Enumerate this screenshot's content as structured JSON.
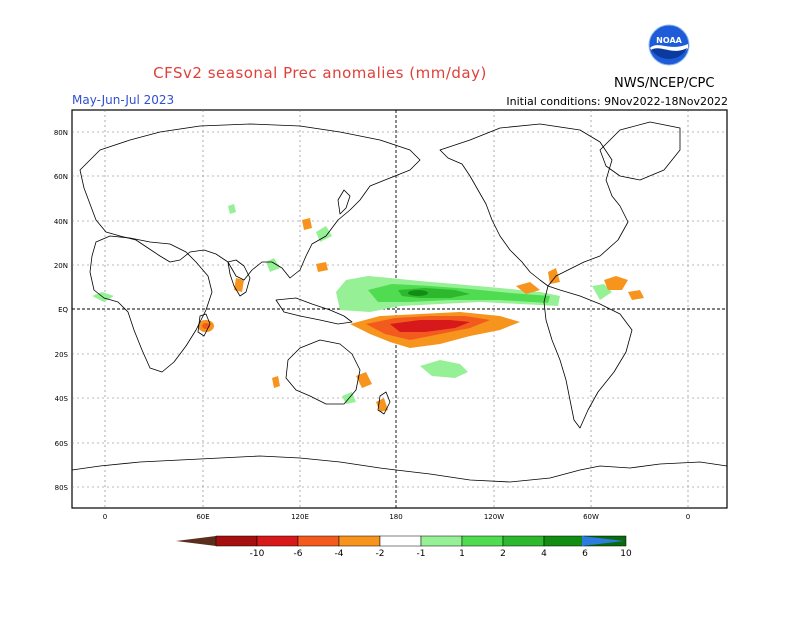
{
  "title": "CFSv2 seasonal Prec anomalies (mm/day)",
  "season": "May-Jun-Jul 2023",
  "initial_conditions": "Initial conditions: 9Nov2022-18Nov2022",
  "agency": "NWS/NCEP/CPC",
  "logo_text": "NOAA",
  "lat_labels": [
    "80N",
    "60N",
    "40N",
    "20N",
    "EQ",
    "20S",
    "40S",
    "60S",
    "80S"
  ],
  "lon_labels": [
    "0",
    "60E",
    "120E",
    "180",
    "120W",
    "60W",
    "0"
  ],
  "colorbar": {
    "labels": [
      "-10",
      "-6",
      "-4",
      "-2",
      "-1",
      "1",
      "2",
      "4",
      "6",
      "10"
    ],
    "colors": [
      "#5a2d1e",
      "#a50f0f",
      "#d7191c",
      "#f25a1e",
      "#f7941d",
      "#ffffff",
      "#96f096",
      "#50dc50",
      "#2db82d",
      "#138c13",
      "#0b6b0b",
      "#2b7be0"
    ]
  },
  "colors": {
    "title": "#e0403a",
    "season": "#3050d0",
    "dry_light": "#f7941d",
    "dry_mid": "#f25a1e",
    "dry_strong": "#d7191c",
    "wet_light": "#96f096",
    "wet_mid": "#50dc50",
    "wet_strong": "#2db82d"
  }
}
